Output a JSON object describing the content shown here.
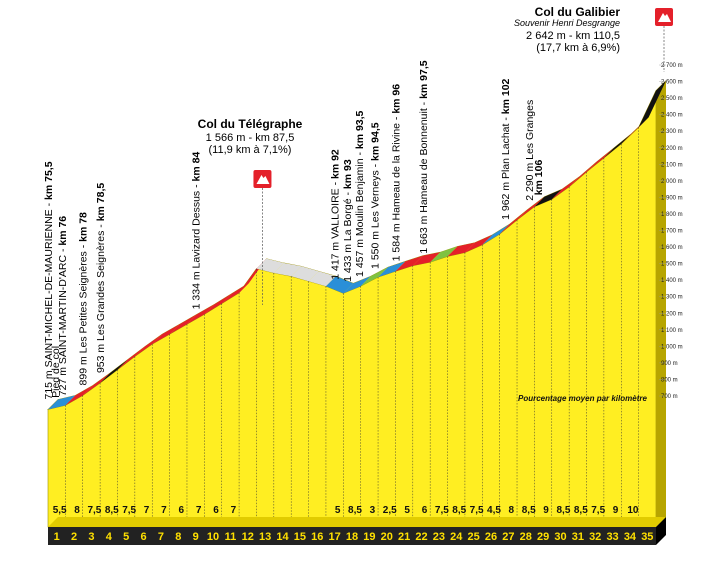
{
  "profile": {
    "km_start": 0,
    "km_end": 35,
    "elev_min": 700,
    "elev_max": 2700,
    "elevation_ticks": [
      "700 m",
      "800 m",
      "900 m",
      "1 000 m",
      "1 100 m",
      "1 200 m",
      "1 300 m",
      "1 400 m",
      "1 500 m",
      "1 600 m",
      "1 700 m",
      "1 800 m",
      "1 900 m",
      "2 000 m",
      "2 100 m",
      "2 200 m",
      "2 300 m",
      "2 400 m",
      "2 500 m",
      "2 600 m",
      "2 700 m"
    ],
    "km_numbers": [
      "1",
      "2",
      "3",
      "4",
      "5",
      "6",
      "7",
      "8",
      "9",
      "10",
      "11",
      "12",
      "13",
      "14",
      "15",
      "16",
      "17",
      "18",
      "19",
      "20",
      "21",
      "22",
      "23",
      "24",
      "25",
      "26",
      "27",
      "28",
      "29",
      "30",
      "31",
      "32",
      "33",
      "34",
      "35"
    ],
    "gradients": [
      "5,5",
      "8",
      "7,5",
      "8,5",
      "7,5",
      "7",
      "7",
      "6",
      "7",
      "6",
      "7",
      "",
      "",
      "",
      "",
      "",
      "5",
      "8,5",
      "3",
      "2,5",
      "5",
      "6",
      "7,5",
      "8,5",
      "7,5",
      "4,5",
      "8",
      "8,5",
      "9",
      "8,5",
      "8,5",
      "7,5",
      "9",
      "10",
      ""
    ],
    "elevation_points": [
      [
        0,
        715
      ],
      [
        1,
        740
      ],
      [
        2,
        800
      ],
      [
        3,
        875
      ],
      [
        4,
        955
      ],
      [
        5,
        1035
      ],
      [
        6,
        1110
      ],
      [
        7,
        1170
      ],
      [
        8,
        1230
      ],
      [
        9,
        1290
      ],
      [
        10,
        1355
      ],
      [
        11,
        1420
      ],
      [
        12,
        1566
      ],
      [
        13,
        1540
      ],
      [
        14,
        1520
      ],
      [
        15,
        1490
      ],
      [
        16,
        1460
      ],
      [
        17,
        1417
      ],
      [
        18,
        1460
      ],
      [
        19,
        1515
      ],
      [
        20,
        1550
      ],
      [
        21,
        1584
      ],
      [
        22,
        1605
      ],
      [
        23,
        1640
      ],
      [
        24,
        1663
      ],
      [
        25,
        1710
      ],
      [
        26,
        1775
      ],
      [
        27,
        1860
      ],
      [
        28,
        1940
      ],
      [
        29,
        1985
      ],
      [
        30,
        2060
      ],
      [
        31,
        2150
      ],
      [
        32,
        2235
      ],
      [
        33,
        2320
      ],
      [
        34,
        2420
      ],
      [
        35,
        2642
      ]
    ],
    "legend": "Pourcentage moyen par kilomètre"
  },
  "summits": [
    {
      "name": "Col du Télégraphe",
      "subtitle": "",
      "line1": "1 566 m - km 87,5",
      "line2": "(11,9 km à 7,1%)",
      "km": 12
    },
    {
      "name": "Col du Galibier",
      "subtitle": "Souvenir Henri Desgrange",
      "line1": "2 642 m - km 110,5",
      "line2": "(17,7 km à 6,9%)",
      "km": 35
    }
  ],
  "waypoints": [
    {
      "label": "715 m SAINT-MICHEL-DE-MAURIENNE - ",
      "km_label": "km 75,5",
      "km": 0
    },
    {
      "label": "Pied de col",
      "km_label": "",
      "km": 0.4
    },
    {
      "label": "727 m SAINT-MARTIN-D'ARC - ",
      "km_label": "km 76",
      "km": 0.8
    },
    {
      "label": "899 m Les Petites Seignères - ",
      "km_label": "km 78",
      "km": 2
    },
    {
      "label": "953 m Les Grandes Seignères - ",
      "km_label": "km 78,5",
      "km": 3
    },
    {
      "label": "1 334 m Lavizard Dessus - ",
      "km_label": "km 84",
      "km": 8.5
    },
    {
      "label": "1 417 m VALLOIRE - ",
      "km_label": "km 92",
      "km": 16.5
    },
    {
      "label": "1 433 m La Borgé - ",
      "km_label": "km 93",
      "km": 17.2
    },
    {
      "label": "1 457 m Moulin Benjamin - ",
      "km_label": "km 93,5",
      "km": 17.9
    },
    {
      "label": "1 550 m Les Verneys - ",
      "km_label": "km 94,5",
      "km": 18.8
    },
    {
      "label": "1 584 m Hameau de la Rivine - ",
      "km_label": "km 96",
      "km": 20
    },
    {
      "label": "1 663 m Hameau de Bonnenuit - ",
      "km_label": "km 97,5",
      "km": 21.6
    },
    {
      "label": "1 962 m Plan Lachat - ",
      "km_label": "km 102",
      "km": 26.3
    },
    {
      "label": "2 290 m Les Granges",
      "km_label": "",
      "km": 27.7
    },
    {
      "label": "",
      "km_label": "km 106",
      "km": 28.2
    }
  ],
  "colors": {
    "fill": "#ffee22",
    "side": "#b7a500",
    "base": "#222222",
    "red": "#e4202a",
    "blue": "#2a8fd8",
    "black": "#111111",
    "grey": "#dddddd",
    "green": "#7fc241",
    "flag": "#e4202a"
  }
}
